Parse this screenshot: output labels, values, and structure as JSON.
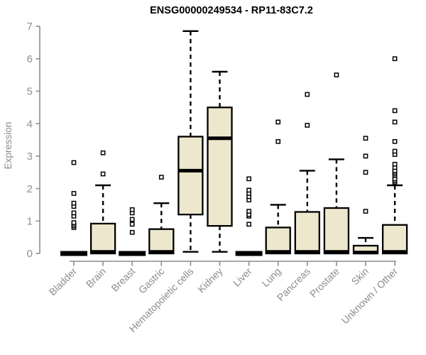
{
  "page": {
    "background": "#ffffff"
  },
  "chart_data": {
    "type": "boxplot",
    "title": "ENSG00000249534 - RP11-83C7.2",
    "xlabel": "",
    "ylabel": "Expression",
    "ylim": [
      0,
      7
    ],
    "yticks": [
      0,
      1,
      2,
      3,
      4,
      5,
      6,
      7
    ],
    "grid": false,
    "legend": "none",
    "box_fill": "#EDE8CD",
    "box_stroke": "#000000",
    "axis_color": "#8c8c8c",
    "categories": [
      "Bladder",
      "Brain",
      "Breast",
      "Gastric",
      "Hematopoietic cells",
      "Kidney",
      "Liver",
      "Lung",
      "Pancreas",
      "Prostate",
      "Skin",
      "Unknown / Other"
    ],
    "series": [
      {
        "category": "Bladder",
        "min": 0,
        "q1": 0,
        "median": 0,
        "q3": 0,
        "max": 0,
        "outliers": [
          0.8,
          0.85,
          0.9,
          0.95,
          1.15,
          1.25,
          1.45,
          1.55,
          1.85,
          2.8
        ]
      },
      {
        "category": "Brain",
        "min": 0,
        "q1": 0,
        "median": 0.05,
        "q3": 0.92,
        "max": 2.1,
        "outliers": [
          2.45,
          3.1
        ]
      },
      {
        "category": "Breast",
        "min": 0,
        "q1": 0,
        "median": 0,
        "q3": 0,
        "max": 0,
        "outliers": [
          0.65,
          0.9,
          1.05,
          1.25,
          1.35
        ]
      },
      {
        "category": "Gastric",
        "min": 0,
        "q1": 0,
        "median": 0.05,
        "q3": 0.75,
        "max": 1.55,
        "outliers": [
          2.35
        ]
      },
      {
        "category": "Hematopoietic cells",
        "min": 0.05,
        "q1": 1.2,
        "median": 2.55,
        "q3": 3.6,
        "max": 6.85,
        "outliers": []
      },
      {
        "category": "Kidney",
        "min": 0.05,
        "q1": 0.85,
        "median": 3.55,
        "q3": 4.5,
        "max": 5.6,
        "outliers": []
      },
      {
        "category": "Liver",
        "min": 0,
        "q1": 0,
        "median": 0,
        "q3": 0,
        "max": 0,
        "outliers": [
          0.9,
          1.15,
          1.2,
          1.3,
          1.65,
          1.75,
          1.85,
          1.95,
          2.3
        ]
      },
      {
        "category": "Lung",
        "min": 0,
        "q1": 0,
        "median": 0.05,
        "q3": 0.8,
        "max": 1.5,
        "outliers": [
          3.45,
          4.05
        ]
      },
      {
        "category": "Pancreas",
        "min": 0,
        "q1": 0,
        "median": 0.05,
        "q3": 1.28,
        "max": 2.55,
        "outliers": [
          3.95,
          4.9
        ]
      },
      {
        "category": "Prostate",
        "min": 0,
        "q1": 0,
        "median": 0.05,
        "q3": 1.4,
        "max": 2.9,
        "outliers": [
          5.5
        ]
      },
      {
        "category": "Skin",
        "min": 0,
        "q1": 0,
        "median": 0.03,
        "q3": 0.24,
        "max": 0.48,
        "outliers": [
          1.3,
          2.5,
          3.0,
          3.55
        ]
      },
      {
        "category": "Unknown / Other",
        "min": 0,
        "q1": 0,
        "median": 0.05,
        "q3": 0.88,
        "max": 2.1,
        "outliers": [
          2.2,
          2.25,
          2.3,
          2.4,
          2.45,
          2.5,
          2.55,
          2.65,
          2.75,
          3.05,
          3.15,
          3.45,
          4.05,
          4.4,
          6.0
        ]
      }
    ]
  }
}
